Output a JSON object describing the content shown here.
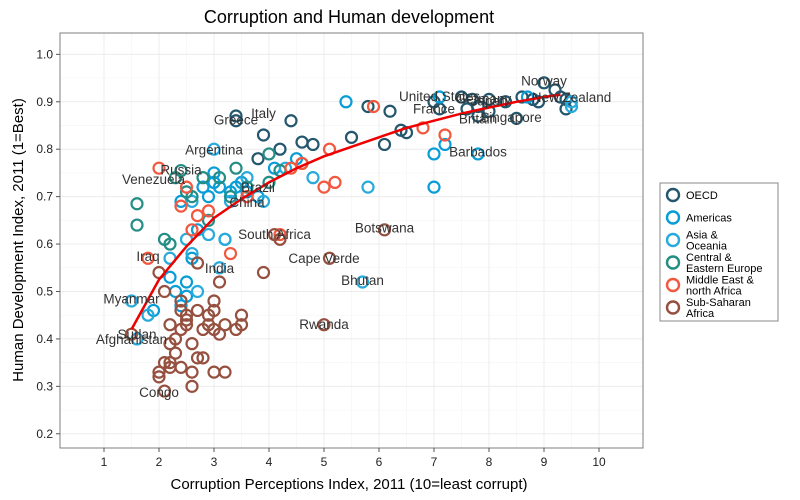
{
  "chart_data": {
    "type": "scatter",
    "title": "Corruption and Human development",
    "xlabel": "Corruption Perceptions Index, 2011 (10=least corrupt)",
    "ylabel": "Human Development Index, 2011 (1=Best)",
    "xlim": [
      0.2,
      10.8
    ],
    "ylim": [
      0.17,
      1.045
    ],
    "x_ticks": [
      1,
      2,
      3,
      4,
      5,
      6,
      7,
      8,
      9,
      10
    ],
    "y_ticks": [
      0.2,
      0.3,
      0.4,
      0.5,
      0.6,
      0.7,
      0.8,
      0.9,
      1.0
    ],
    "x_tick_labels": [
      "1",
      "2",
      "3",
      "4",
      "5",
      "6",
      "7",
      "8",
      "9",
      "10"
    ],
    "y_tick_labels": [
      "0.2",
      "0.3",
      "0.4",
      "0.5",
      "0.6",
      "0.7",
      "0.8",
      "0.9",
      "1.0"
    ],
    "grid": true,
    "legend_position": "right",
    "trend_line": {
      "color": "#ee0000",
      "x": [
        1.5,
        2,
        2.5,
        3,
        3.5,
        4,
        4.5,
        5,
        5.5,
        6,
        6.5,
        7,
        7.5,
        8,
        8.5,
        9,
        9.3
      ],
      "y": [
        0.42,
        0.525,
        0.595,
        0.655,
        0.695,
        0.73,
        0.76,
        0.785,
        0.805,
        0.825,
        0.845,
        0.86,
        0.875,
        0.888,
        0.9,
        0.91,
        0.915
      ]
    },
    "series": [
      {
        "name": "OECD",
        "color": "#24576D",
        "points": [
          [
            3.4,
            0.87
          ],
          [
            4.4,
            0.86
          ],
          [
            3.9,
            0.83
          ],
          [
            4.6,
            0.815
          ],
          [
            4.8,
            0.81
          ],
          [
            5.5,
            0.825
          ],
          [
            5.8,
            0.89
          ],
          [
            6.2,
            0.88
          ],
          [
            6.4,
            0.84
          ],
          [
            6.5,
            0.835
          ],
          [
            6.1,
            0.81
          ],
          [
            7.0,
            0.9
          ],
          [
            7.1,
            0.885
          ],
          [
            7.5,
            0.91
          ],
          [
            7.7,
            0.905
          ],
          [
            7.6,
            0.885
          ],
          [
            7.8,
            0.89
          ],
          [
            7.8,
            0.87
          ],
          [
            8.0,
            0.905
          ],
          [
            8.0,
            0.88
          ],
          [
            8.3,
            0.9
          ],
          [
            8.5,
            0.865
          ],
          [
            8.6,
            0.91
          ],
          [
            8.8,
            0.905
          ],
          [
            8.9,
            0.9
          ],
          [
            9.0,
            0.94
          ],
          [
            9.2,
            0.925
          ],
          [
            9.3,
            0.91
          ],
          [
            9.4,
            0.905
          ],
          [
            9.4,
            0.885
          ],
          [
            3.4,
            0.86
          ],
          [
            3.8,
            0.78
          ],
          [
            4.2,
            0.8
          ]
        ]
      },
      {
        "name": "Americas",
        "color": "#099DD7",
        "points": [
          [
            1.9,
            0.46
          ],
          [
            2.2,
            0.53
          ],
          [
            2.3,
            0.5
          ],
          [
            2.4,
            0.47
          ],
          [
            2.5,
            0.52
          ],
          [
            2.5,
            0.49
          ],
          [
            2.6,
            0.57
          ],
          [
            2.7,
            0.63
          ],
          [
            2.8,
            0.72
          ],
          [
            2.9,
            0.7
          ],
          [
            3.0,
            0.73
          ],
          [
            3.0,
            0.75
          ],
          [
            3.1,
            0.72
          ],
          [
            3.2,
            0.61
          ],
          [
            3.3,
            0.71
          ],
          [
            3.4,
            0.72
          ],
          [
            3.5,
            0.73
          ],
          [
            3.6,
            0.71
          ],
          [
            3.8,
            0.7
          ],
          [
            4.1,
            0.76
          ],
          [
            4.5,
            0.78
          ],
          [
            7.0,
            0.79
          ],
          [
            7.1,
            0.91
          ],
          [
            5.4,
            0.9
          ],
          [
            8.7,
            0.91
          ],
          [
            7.0,
            0.72
          ],
          [
            7.2,
            0.81
          ],
          [
            7.8,
            0.79
          ],
          [
            2.4,
            0.69
          ]
        ]
      },
      {
        "name": "Asia &\nOceania",
        "color": "#28AADC",
        "points": [
          [
            1.5,
            0.48
          ],
          [
            1.8,
            0.45
          ],
          [
            1.6,
            0.4
          ],
          [
            2.2,
            0.57
          ],
          [
            2.5,
            0.61
          ],
          [
            2.6,
            0.58
          ],
          [
            2.6,
            0.69
          ],
          [
            2.9,
            0.62
          ],
          [
            3.0,
            0.8
          ],
          [
            3.1,
            0.55
          ],
          [
            3.2,
            0.61
          ],
          [
            3.3,
            0.69
          ],
          [
            3.6,
            0.74
          ],
          [
            4.3,
            0.76
          ],
          [
            4.8,
            0.74
          ],
          [
            5.7,
            0.52
          ],
          [
            5.8,
            0.72
          ],
          [
            9.5,
            0.9
          ],
          [
            9.5,
            0.89
          ],
          [
            2.7,
            0.5
          ],
          [
            3.9,
            0.69
          ]
        ]
      },
      {
        "name": "Central &\nEastern Europe",
        "color": "#248E84",
        "points": [
          [
            1.6,
            0.685
          ],
          [
            1.6,
            0.64
          ],
          [
            2.1,
            0.61
          ],
          [
            2.2,
            0.6
          ],
          [
            2.4,
            0.755
          ],
          [
            2.5,
            0.71
          ],
          [
            2.6,
            0.7
          ],
          [
            2.9,
            0.65
          ],
          [
            3.1,
            0.74
          ],
          [
            3.3,
            0.7
          ],
          [
            3.4,
            0.76
          ],
          [
            3.6,
            0.72
          ],
          [
            4.0,
            0.73
          ],
          [
            4.0,
            0.79
          ],
          [
            4.2,
            0.755
          ],
          [
            4.6,
            0.77
          ],
          [
            2.3,
            0.74
          ],
          [
            2.8,
            0.74
          ]
        ]
      },
      {
        "name": "Middle East &\nnorth Africa",
        "color": "#F2583F",
        "points": [
          [
            1.8,
            0.57
          ],
          [
            2.0,
            0.76
          ],
          [
            2.4,
            0.68
          ],
          [
            2.5,
            0.72
          ],
          [
            2.6,
            0.63
          ],
          [
            2.7,
            0.66
          ],
          [
            2.9,
            0.67
          ],
          [
            3.3,
            0.58
          ],
          [
            3.6,
            0.7
          ],
          [
            4.2,
            0.62
          ],
          [
            4.4,
            0.76
          ],
          [
            4.6,
            0.77
          ],
          [
            5.0,
            0.72
          ],
          [
            5.1,
            0.8
          ],
          [
            5.2,
            0.73
          ],
          [
            6.8,
            0.845
          ],
          [
            7.2,
            0.83
          ],
          [
            5.9,
            0.89
          ]
        ]
      },
      {
        "name": "Sub-Saharan\nAfrica",
        "color": "#96503F",
        "points": [
          [
            1.5,
            0.41
          ],
          [
            2.0,
            0.54
          ],
          [
            2.0,
            0.33
          ],
          [
            2.1,
            0.35
          ],
          [
            2.1,
            0.5
          ],
          [
            2.2,
            0.34
          ],
          [
            2.2,
            0.39
          ],
          [
            2.2,
            0.43
          ],
          [
            2.3,
            0.37
          ],
          [
            2.4,
            0.46
          ],
          [
            2.4,
            0.48
          ],
          [
            2.4,
            0.34
          ],
          [
            2.5,
            0.43
          ],
          [
            2.5,
            0.45
          ],
          [
            2.5,
            0.44
          ],
          [
            2.6,
            0.39
          ],
          [
            2.6,
            0.33
          ],
          [
            2.7,
            0.36
          ],
          [
            2.7,
            0.46
          ],
          [
            2.8,
            0.36
          ],
          [
            2.8,
            0.42
          ],
          [
            2.9,
            0.43
          ],
          [
            3.0,
            0.33
          ],
          [
            3.0,
            0.48
          ],
          [
            3.0,
            0.46
          ],
          [
            3.1,
            0.41
          ],
          [
            3.1,
            0.52
          ],
          [
            3.2,
            0.43
          ],
          [
            3.2,
            0.33
          ],
          [
            3.5,
            0.45
          ],
          [
            3.5,
            0.43
          ],
          [
            3.9,
            0.54
          ],
          [
            5.0,
            0.43
          ],
          [
            6.1,
            0.63
          ],
          [
            4.2,
            0.61
          ],
          [
            4.1,
            0.62
          ],
          [
            2.0,
            0.32
          ],
          [
            2.1,
            0.29
          ],
          [
            2.6,
            0.3
          ],
          [
            3.0,
            0.42
          ],
          [
            2.3,
            0.4
          ],
          [
            2.9,
            0.45
          ],
          [
            3.4,
            0.42
          ],
          [
            2.7,
            0.56
          ],
          [
            5.1,
            0.57
          ],
          [
            2.2,
            0.35
          ],
          [
            2.4,
            0.42
          ]
        ]
      }
    ],
    "annotations": [
      {
        "text": "Norway",
        "x": 9.0,
        "y": 0.943
      },
      {
        "text": "New Zealand",
        "x": 9.5,
        "y": 0.908
      },
      {
        "text": "United States",
        "x": 7.1,
        "y": 0.91
      },
      {
        "text": "Japan",
        "x": 8.0,
        "y": 0.901
      },
      {
        "text": "Germany",
        "x": 7.9,
        "y": 0.905
      },
      {
        "text": "France",
        "x": 7.0,
        "y": 0.884
      },
      {
        "text": "Britain",
        "x": 7.8,
        "y": 0.863
      },
      {
        "text": "Singapore",
        "x": 8.4,
        "y": 0.866
      },
      {
        "text": "Italy",
        "x": 3.9,
        "y": 0.874
      },
      {
        "text": "Greece",
        "x": 3.4,
        "y": 0.861
      },
      {
        "text": "Barbados",
        "x": 7.8,
        "y": 0.793
      },
      {
        "text": "Argentina",
        "x": 3.0,
        "y": 0.797
      },
      {
        "text": "Russia",
        "x": 2.4,
        "y": 0.755
      },
      {
        "text": "Venezuela",
        "x": 1.9,
        "y": 0.735
      },
      {
        "text": "Brazil",
        "x": 3.8,
        "y": 0.718
      },
      {
        "text": "China",
        "x": 3.6,
        "y": 0.687
      },
      {
        "text": "Botswana",
        "x": 6.1,
        "y": 0.633
      },
      {
        "text": "South Africa",
        "x": 4.1,
        "y": 0.619
      },
      {
        "text": "Iraq",
        "x": 1.8,
        "y": 0.573
      },
      {
        "text": "India",
        "x": 3.1,
        "y": 0.547
      },
      {
        "text": "Cape Verde",
        "x": 5.0,
        "y": 0.568
      },
      {
        "text": "Bhutan",
        "x": 5.7,
        "y": 0.522
      },
      {
        "text": "Myanmar",
        "x": 1.5,
        "y": 0.483
      },
      {
        "text": "Rwanda",
        "x": 5.0,
        "y": 0.429
      },
      {
        "text": "Sudan",
        "x": 1.6,
        "y": 0.408
      },
      {
        "text": "Afghanistan",
        "x": 1.5,
        "y": 0.398
      },
      {
        "text": "Congo",
        "x": 2.0,
        "y": 0.286
      }
    ]
  }
}
